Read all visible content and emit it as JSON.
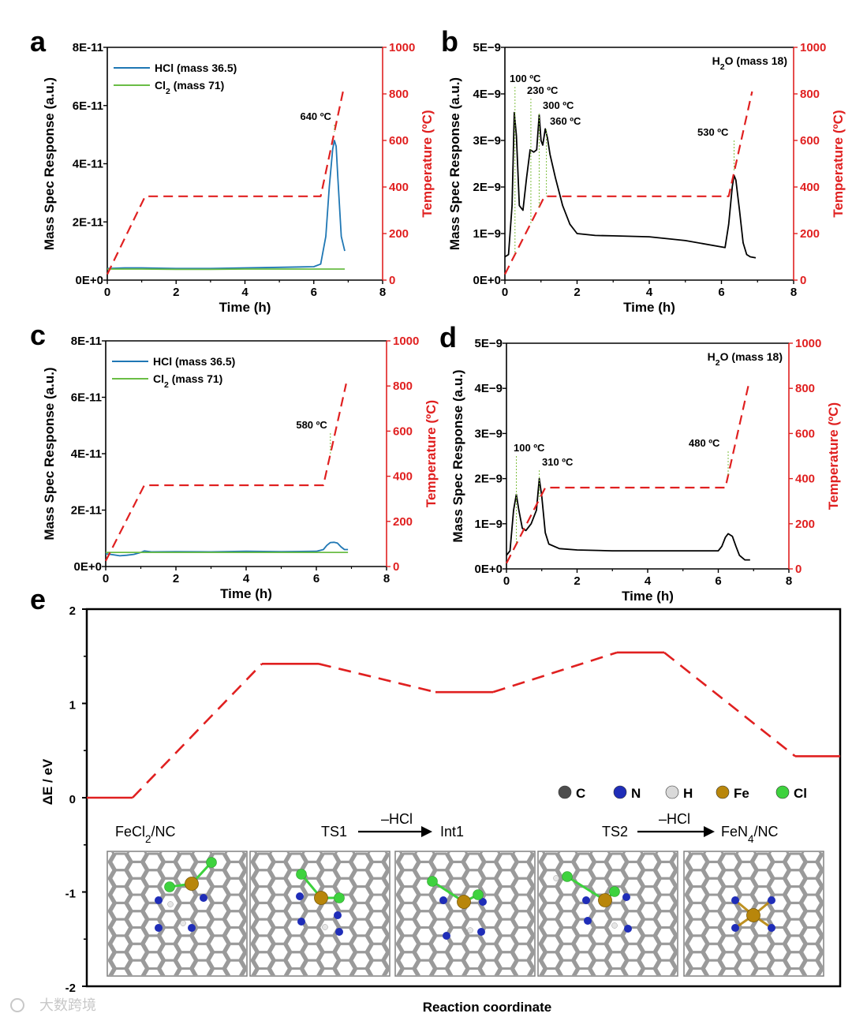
{
  "chart_data": [
    {
      "panel": "a",
      "type": "line",
      "xlabel": "Time (h)",
      "ylabel": "Mass Spec Response (a.u.)",
      "y2label": "Temperature (ºC)",
      "xlim": [
        0,
        8
      ],
      "ylim": [
        0,
        8e-11
      ],
      "y2lim": [
        0,
        1000
      ],
      "xticks": [
        "0",
        "2",
        "4",
        "6",
        "8"
      ],
      "yticks": [
        "0E+0",
        "2E-11",
        "4E-11",
        "6E-11",
        "8E-11"
      ],
      "y2ticks": [
        "0",
        "200",
        "400",
        "600",
        "800",
        "1000"
      ],
      "legend": [
        "HCl (mass 36.5)",
        "Cl2 (mass 71)"
      ],
      "series": [
        {
          "name": "HCl (mass 36.5)",
          "color": "#1f77b4",
          "x": [
            0,
            0.5,
            1,
            2,
            3,
            4,
            5,
            6,
            6.2,
            6.35,
            6.45,
            6.55,
            6.6,
            6.65,
            6.7,
            6.8,
            6.9
          ],
          "y": [
            4e-12,
            4.2e-12,
            4.2e-12,
            4e-12,
            4e-12,
            4.2e-12,
            4.4e-12,
            4.6e-12,
            5.5e-12,
            1.5e-11,
            3.2e-11,
            4.5e-11,
            4.8e-11,
            4.6e-11,
            3.5e-11,
            1.5e-11,
            1e-11
          ]
        },
        {
          "name": "Cl2 (mass 71)",
          "color": "#6abd45",
          "x": [
            0,
            1,
            2,
            3,
            4,
            5,
            6,
            6.9
          ],
          "y": [
            3.8e-12,
            3.8e-12,
            3.7e-12,
            3.7e-12,
            3.8e-12,
            3.8e-12,
            3.8e-12,
            3.8e-12
          ]
        },
        {
          "name": "Temperature",
          "color": "#e02020",
          "axis": "y2",
          "style": "dashed",
          "x": [
            0,
            1.1,
            6.2,
            6.85
          ],
          "y": [
            25,
            360,
            360,
            810
          ]
        }
      ],
      "annotations": [
        {
          "text": "640 ºC",
          "x": 6.6
        }
      ]
    },
    {
      "panel": "b",
      "type": "line",
      "xlabel": "Time (h)",
      "ylabel": "Mass Spec Response (a.u.)",
      "y2label": "Temperature (ºC)",
      "xlim": [
        0,
        8
      ],
      "ylim": [
        0,
        5e-09
      ],
      "y2lim": [
        0,
        1000
      ],
      "xticks": [
        "0",
        "2",
        "4",
        "6",
        "8"
      ],
      "yticks": [
        "0E+0",
        "1E−9",
        "2E−9",
        "3E−9",
        "4E−9",
        "5E−9"
      ],
      "y2ticks": [
        "0",
        "200",
        "400",
        "600",
        "800",
        "1000"
      ],
      "legend_text": "H2O (mass 18)",
      "series": [
        {
          "name": "H2O (mass 18)",
          "color": "#000000",
          "x": [
            0,
            0.1,
            0.2,
            0.26,
            0.32,
            0.4,
            0.5,
            0.6,
            0.7,
            0.8,
            0.88,
            0.95,
            1.0,
            1.05,
            1.12,
            1.18,
            1.25,
            1.4,
            1.6,
            1.8,
            2.0,
            2.5,
            3,
            4,
            5,
            6.1,
            6.2,
            6.3,
            6.35,
            6.4,
            6.5,
            6.6,
            6.7,
            6.8,
            6.95
          ],
          "y": [
            5e-10,
            5.5e-10,
            1.6e-09,
            3.6e-09,
            3.1e-09,
            1.6e-09,
            1.5e-09,
            2.2e-09,
            2.8e-09,
            2.75e-09,
            2.8e-09,
            3.55e-09,
            3e-09,
            2.9e-09,
            3.25e-09,
            3.05e-09,
            2.7e-09,
            2.2e-09,
            1.6e-09,
            1.2e-09,
            1e-09,
            9.6e-10,
            9.5e-10,
            9.3e-10,
            8.5e-10,
            7e-10,
            1.2e-09,
            2e-09,
            2.25e-09,
            2.15e-09,
            1.5e-09,
            8e-10,
            5.5e-10,
            5e-10,
            4.8e-10
          ]
        },
        {
          "name": "Temperature",
          "color": "#e02020",
          "axis": "y2",
          "style": "dashed",
          "x": [
            0,
            1.1,
            6.2,
            6.85
          ],
          "y": [
            25,
            360,
            360,
            810
          ]
        }
      ],
      "annotations": [
        {
          "text": "100 ºC",
          "x": 0.28
        },
        {
          "text": "230 ºC",
          "x": 0.72
        },
        {
          "text": "300 ºC",
          "x": 0.95
        },
        {
          "text": "360 ºC",
          "x": 1.15
        },
        {
          "text": "530 ºC",
          "x": 6.35
        }
      ]
    },
    {
      "panel": "c",
      "type": "line",
      "xlabel": "Time (h)",
      "ylabel": "Mass Spec Response (a.u.)",
      "y2label": "Temperature (ºC)",
      "xlim": [
        0,
        8
      ],
      "ylim": [
        0,
        8e-11
      ],
      "y2lim": [
        0,
        1000
      ],
      "xticks": [
        "0",
        "2",
        "4",
        "6",
        "8"
      ],
      "yticks": [
        "0E+0",
        "2E-11",
        "4E-11",
        "6E-11",
        "8E-11"
      ],
      "y2ticks": [
        "0",
        "200",
        "400",
        "600",
        "800",
        "1000"
      ],
      "legend": [
        "HCl (mass 36.5)",
        "Cl2 (mass 71)"
      ],
      "series": [
        {
          "name": "HCl (mass 36.5)",
          "color": "#1f77b4",
          "x": [
            0,
            0.2,
            0.4,
            0.6,
            0.8,
            1.0,
            1.1,
            1.3,
            2,
            3,
            4,
            5,
            6,
            6.2,
            6.3,
            6.4,
            6.5,
            6.6,
            6.7,
            6.8,
            6.9
          ],
          "y": [
            4.5e-12,
            4.2e-12,
            3.8e-12,
            4e-12,
            4.3e-12,
            5e-12,
            5.5e-12,
            5.2e-12,
            5.3e-12,
            5.2e-12,
            5.4e-12,
            5.3e-12,
            5.4e-12,
            6e-12,
            7.5e-12,
            8.5e-12,
            8.6e-12,
            8.3e-12,
            7e-12,
            6e-12,
            6e-12
          ]
        },
        {
          "name": "Cl2 (mass 71)",
          "color": "#6abd45",
          "x": [
            0,
            1,
            2,
            3,
            4,
            5,
            6,
            6.9
          ],
          "y": [
            5e-12,
            5e-12,
            5e-12,
            5e-12,
            5e-12,
            5e-12,
            5e-12,
            5e-12
          ]
        },
        {
          "name": "Temperature",
          "color": "#e02020",
          "axis": "y2",
          "style": "dashed",
          "x": [
            0,
            1.1,
            6.2,
            6.85
          ],
          "y": [
            25,
            360,
            360,
            810
          ]
        }
      ],
      "annotations": [
        {
          "text": "580 ºC",
          "x": 6.4
        }
      ]
    },
    {
      "panel": "d",
      "type": "line",
      "xlabel": "Time (h)",
      "ylabel": "Mass Spec Response (a.u.)",
      "y2label": "Temperature (ºC)",
      "xlim": [
        0,
        8
      ],
      "ylim": [
        0,
        5e-09
      ],
      "y2lim": [
        0,
        1000
      ],
      "xticks": [
        "0",
        "2",
        "4",
        "6",
        "8"
      ],
      "yticks": [
        "0E+0",
        "1E−9",
        "2E−9",
        "3E−9",
        "4E−9",
        "5E−9"
      ],
      "y2ticks": [
        "0",
        "200",
        "400",
        "600",
        "800",
        "1000"
      ],
      "legend_text": "H2O (mass 18)",
      "series": [
        {
          "name": "H2O (mass 18)",
          "color": "#000000",
          "x": [
            0,
            0.1,
            0.2,
            0.28,
            0.35,
            0.45,
            0.55,
            0.7,
            0.85,
            0.93,
            1.0,
            1.1,
            1.2,
            1.5,
            2,
            3,
            4,
            5,
            6,
            6.1,
            6.2,
            6.28,
            6.4,
            6.5,
            6.6,
            6.75,
            6.9
          ],
          "y": [
            3e-10,
            4e-10,
            1.3e-09,
            1.65e-09,
            1.3e-09,
            9e-10,
            8.5e-10,
            1e-09,
            1.3e-09,
            2e-09,
            1.6e-09,
            8e-10,
            5.5e-10,
            4.5e-10,
            4.2e-10,
            4e-10,
            4e-10,
            4e-10,
            4e-10,
            5e-10,
            7e-10,
            7.8e-10,
            7.2e-10,
            5e-10,
            3e-10,
            2e-10,
            2e-10
          ]
        },
        {
          "name": "Temperature",
          "color": "#e02020",
          "axis": "y2",
          "style": "dashed",
          "x": [
            0,
            1.1,
            6.2,
            6.85
          ],
          "y": [
            25,
            360,
            360,
            810
          ]
        }
      ],
      "annotations": [
        {
          "text": "100 ºC",
          "x": 0.28
        },
        {
          "text": "310 ºC",
          "x": 0.93
        },
        {
          "text": "480 ºC",
          "x": 6.28
        }
      ]
    },
    {
      "panel": "e",
      "type": "line",
      "xlabel": "Reaction coordinate",
      "ylabel": "ΔE / eV",
      "ylim": [
        -2,
        2
      ],
      "yticks": [
        "-2",
        "-1",
        "0",
        "1",
        "2"
      ],
      "levels": [
        {
          "name": "FeCl2/NC",
          "energy": 0.0
        },
        {
          "name": "TS1",
          "energy": 1.42
        },
        {
          "name": "Int1",
          "energy": 1.12
        },
        {
          "name": "TS2",
          "energy": 1.54
        },
        {
          "name": "FeN4/NC",
          "energy": 0.44
        }
      ],
      "legend_atoms": [
        {
          "symbol": "C",
          "color": "#4d4d4d"
        },
        {
          "symbol": "N",
          "color": "#1f2db8"
        },
        {
          "symbol": "H",
          "color": "#d9d9d9"
        },
        {
          "symbol": "Fe",
          "color": "#b8860b"
        },
        {
          "symbol": "Cl",
          "color": "#3ed23e"
        }
      ],
      "structure_labels": {
        "fecl2": "FeCl",
        "fecl2_sub": "2",
        "fecl2_suffix": "/NC",
        "ts1": "TS1",
        "int1": "Int1",
        "ts2": "TS2",
        "fen4": "FeN",
        "fen4_sub": "4",
        "fen4_suffix": "/NC",
        "hcl": "–HCl"
      }
    }
  ],
  "panel_labels": [
    "a",
    "b",
    "c",
    "d",
    "e"
  ],
  "legend_text": {
    "hcl": "HCl (mass 36.5)",
    "cl": "Cl",
    "cl_sub": "2",
    "cl_suffix": " (mass 71)",
    "h": "H",
    "h_sub": "2",
    "h_suffix": "O (mass 18)"
  },
  "watermark": "大数跨境"
}
